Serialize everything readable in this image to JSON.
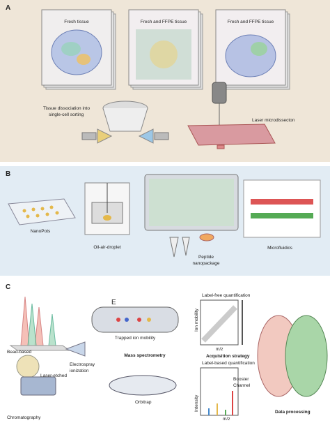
{
  "panels": [
    {
      "label": "A",
      "texts": [
        "Fresh tissue",
        "Fresh and FFPE tissue",
        "Fresh and FFPE tissue",
        "Tissue dissociation into",
        "single-cell sorting",
        "Laser microdissecton"
      ]
    },
    {
      "label": "B",
      "texts": [
        "NanoPots",
        "Oil-air-droplet",
        "Peptide",
        "nanopackage",
        "Microfluidics"
      ]
    },
    {
      "label": "C",
      "texts": [
        "Chromatography",
        "Bead-based",
        "Laser-etched",
        "Electrospray",
        "ionization",
        "E",
        "Trapped ion mobility",
        "Mass spectrometry",
        "Orbitrap",
        "Label-free quantification",
        "Ion mobility",
        "m/z",
        "Acquisition strategy",
        "Label-based quantification",
        "Booster",
        "Channel",
        "Intensity",
        "m/z",
        "Data processing"
      ]
    }
  ]
}
